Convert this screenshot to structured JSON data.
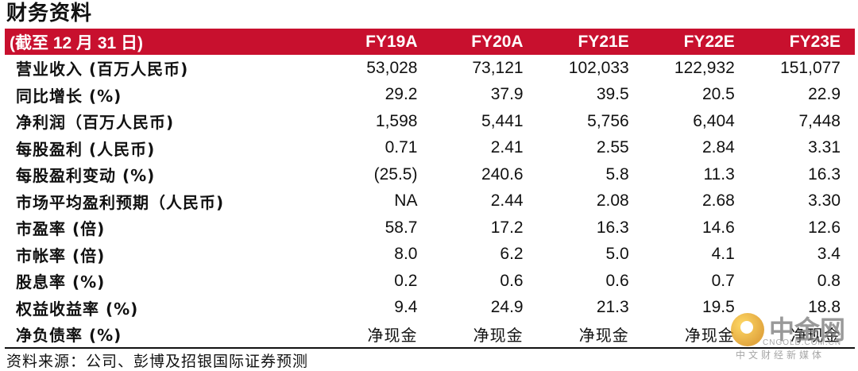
{
  "title": "财务资料",
  "header_color": "#c8102e",
  "table": {
    "header": [
      "(截至 12 月 31 日)",
      "FY19A",
      "FY20A",
      "FY21E",
      "FY22E",
      "FY23E"
    ],
    "rows": [
      {
        "label": "营业收入 (百万人民币)",
        "values": [
          "53,028",
          "73,121",
          "102,033",
          "122,932",
          "151,077"
        ]
      },
      {
        "label": "同比增长 (%)",
        "values": [
          "29.2",
          "37.9",
          "39.5",
          "20.5",
          "22.9"
        ]
      },
      {
        "label": "净利润（百万人民币)",
        "values": [
          "1,598",
          "5,441",
          "5,756",
          "6,404",
          "7,448"
        ]
      },
      {
        "label": "每股盈利 (人民币)",
        "values": [
          "0.71",
          "2.41",
          "2.55",
          "2.84",
          "3.31"
        ]
      },
      {
        "label": "每股盈利变动 (%)",
        "values": [
          "(25.5)",
          "240.6",
          "5.8",
          "11.3",
          "16.3"
        ]
      },
      {
        "label": "市场平均盈利预期（人民币)",
        "values": [
          "NA",
          "2.44",
          "2.08",
          "2.68",
          "3.30"
        ]
      },
      {
        "label": "市盈率 (倍)",
        "values": [
          "58.7",
          "17.2",
          "16.3",
          "14.6",
          "12.6"
        ]
      },
      {
        "label": "市帐率 (倍)",
        "values": [
          "8.0",
          "6.2",
          "5.0",
          "4.1",
          "3.4"
        ]
      },
      {
        "label": "股息率 (%)",
        "values": [
          "0.2",
          "0.6",
          "0.6",
          "0.7",
          "0.8"
        ]
      },
      {
        "label": "权益收益率 (%)",
        "values": [
          "9.4",
          "24.9",
          "21.3",
          "19.5",
          "18.8"
        ]
      },
      {
        "label": "净负债率 (%)",
        "values": [
          "净现金",
          "净现金",
          "净现金",
          "净现金",
          "净现金"
        ]
      }
    ]
  },
  "source": "资料来源：公司、彭博及招银国际证券预测",
  "watermark": {
    "icon": "coin-logo-icon",
    "name": "中金网",
    "url": "CNGOLD.COM.CN",
    "tagline": "中文财经新媒体"
  }
}
